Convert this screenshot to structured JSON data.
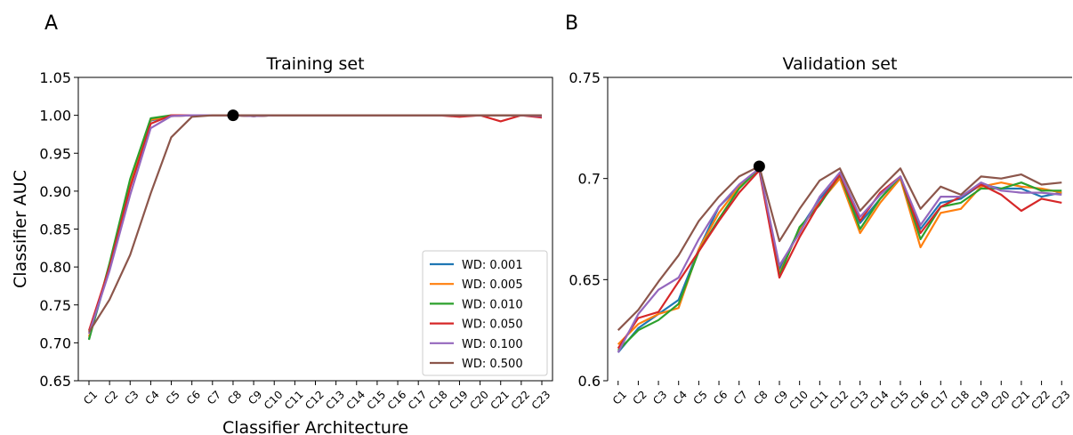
{
  "chart_data": [
    {
      "panel": "A",
      "type": "line",
      "title": "Training set",
      "xlabel": "Classifier Architecture",
      "ylabel": "Classifier AUC",
      "ylim": [
        0.65,
        1.05
      ],
      "yticks": [
        "0.65",
        "0.70",
        "0.75",
        "0.80",
        "0.85",
        "0.90",
        "0.95",
        "1.00",
        "1.05"
      ],
      "categories": [
        "C1",
        "C2",
        "C3",
        "C4",
        "C5",
        "C6",
        "C7",
        "C8",
        "C9",
        "C10",
        "C11",
        "C12",
        "C13",
        "C14",
        "C15",
        "C16",
        "C17",
        "C18",
        "C19",
        "C20",
        "C21",
        "C22",
        "C23"
      ],
      "legend_position": "lower-right",
      "series": [
        {
          "name": "WD: 0.001",
          "color": "#1f77b4",
          "values": [
            0.705,
            0.8,
            0.91,
            0.993,
            0.999,
            1.0,
            1.0,
            1.0,
            0.999,
            1.0,
            1.0,
            1.0,
            1.0,
            1.0,
            1.0,
            1.0,
            1.0,
            1.0,
            1.0,
            1.0,
            1.0,
            1.0,
            1.0
          ]
        },
        {
          "name": "WD: 0.005",
          "color": "#ff7f0e",
          "values": [
            0.708,
            0.802,
            0.912,
            0.994,
            0.999,
            1.0,
            1.0,
            1.0,
            0.999,
            1.0,
            1.0,
            1.0,
            1.0,
            1.0,
            1.0,
            1.0,
            1.0,
            1.0,
            0.999,
            1.0,
            1.0,
            1.0,
            0.999
          ]
        },
        {
          "name": "WD: 0.010",
          "color": "#2ca02c",
          "values": [
            0.704,
            0.805,
            0.916,
            0.996,
            1.0,
            1.0,
            1.0,
            1.0,
            0.999,
            1.0,
            1.0,
            1.0,
            1.0,
            1.0,
            1.0,
            1.0,
            1.0,
            1.0,
            1.0,
            1.0,
            1.0,
            1.0,
            1.0
          ]
        },
        {
          "name": "WD: 0.050",
          "color": "#d62728",
          "values": [
            0.716,
            0.8,
            0.905,
            0.989,
            1.0,
            1.0,
            1.0,
            1.0,
            0.999,
            1.0,
            1.0,
            1.0,
            1.0,
            1.0,
            1.0,
            1.0,
            1.0,
            1.0,
            0.998,
            1.0,
            0.992,
            1.0,
            0.997
          ]
        },
        {
          "name": "WD: 0.100",
          "color": "#9467bd",
          "values": [
            0.712,
            0.795,
            0.895,
            0.983,
            0.999,
            1.0,
            1.0,
            1.0,
            0.999,
            1.0,
            1.0,
            1.0,
            1.0,
            1.0,
            1.0,
            1.0,
            1.0,
            1.0,
            1.0,
            1.0,
            1.0,
            1.0,
            0.999
          ]
        },
        {
          "name": "WD: 0.500",
          "color": "#8c564b",
          "values": [
            0.714,
            0.757,
            0.816,
            0.897,
            0.971,
            0.998,
            1.0,
            1.0,
            1.0,
            1.0,
            1.0,
            1.0,
            1.0,
            1.0,
            1.0,
            1.0,
            1.0,
            1.0,
            1.0,
            1.0,
            1.0,
            1.0,
            1.0
          ]
        }
      ],
      "highlight": {
        "category": "C8",
        "value": 1.0,
        "color": "#000000"
      }
    },
    {
      "panel": "B",
      "type": "line",
      "title": "Validation set",
      "xlabel": "",
      "ylabel": "",
      "ylim": [
        0.6,
        0.75
      ],
      "yticks": [
        "0.6",
        "0.65",
        "0.7",
        "0.75"
      ],
      "categories": [
        "C1",
        "C2",
        "C3",
        "C4",
        "C5",
        "C6",
        "C7",
        "C8",
        "C9",
        "C10",
        "C11",
        "C12",
        "C13",
        "C14",
        "C15",
        "C16",
        "C17",
        "C18",
        "C19",
        "C20",
        "C21",
        "C22",
        "C23"
      ],
      "series": [
        {
          "name": "WD: 0.001",
          "color": "#1f77b4",
          "values": [
            0.614,
            0.626,
            0.633,
            0.64,
            0.665,
            0.686,
            0.696,
            0.705,
            0.655,
            0.675,
            0.69,
            0.701,
            0.678,
            0.69,
            0.701,
            0.675,
            0.688,
            0.69,
            0.697,
            0.695,
            0.695,
            0.691,
            0.693
          ]
        },
        {
          "name": "WD: 0.005",
          "color": "#ff7f0e",
          "values": [
            0.618,
            0.628,
            0.633,
            0.636,
            0.665,
            0.683,
            0.696,
            0.705,
            0.653,
            0.675,
            0.688,
            0.7,
            0.673,
            0.688,
            0.7,
            0.666,
            0.683,
            0.685,
            0.696,
            0.698,
            0.696,
            0.695,
            0.693
          ]
        },
        {
          "name": "WD: 0.010",
          "color": "#2ca02c",
          "values": [
            0.615,
            0.625,
            0.63,
            0.638,
            0.664,
            0.68,
            0.695,
            0.705,
            0.652,
            0.676,
            0.687,
            0.702,
            0.675,
            0.69,
            0.701,
            0.67,
            0.686,
            0.688,
            0.695,
            0.695,
            0.698,
            0.694,
            0.694
          ]
        },
        {
          "name": "WD: 0.050",
          "color": "#d62728",
          "values": [
            0.616,
            0.631,
            0.634,
            0.649,
            0.664,
            0.679,
            0.693,
            0.704,
            0.651,
            0.671,
            0.688,
            0.702,
            0.679,
            0.693,
            0.701,
            0.673,
            0.686,
            0.691,
            0.697,
            0.692,
            0.684,
            0.69,
            0.688
          ]
        },
        {
          "name": "WD: 0.100",
          "color": "#9467bd",
          "values": [
            0.614,
            0.633,
            0.645,
            0.651,
            0.67,
            0.686,
            0.697,
            0.705,
            0.657,
            0.673,
            0.691,
            0.703,
            0.681,
            0.692,
            0.701,
            0.677,
            0.691,
            0.691,
            0.698,
            0.694,
            0.693,
            0.693,
            0.692
          ]
        },
        {
          "name": "WD: 0.500",
          "color": "#8c564b",
          "values": [
            0.625,
            0.635,
            0.649,
            0.662,
            0.679,
            0.691,
            0.701,
            0.706,
            0.669,
            0.685,
            0.699,
            0.705,
            0.684,
            0.695,
            0.705,
            0.685,
            0.696,
            0.692,
            0.701,
            0.7,
            0.702,
            0.697,
            0.698
          ]
        }
      ],
      "highlight": {
        "category": "C8",
        "value": 0.706,
        "color": "#000000"
      }
    }
  ]
}
